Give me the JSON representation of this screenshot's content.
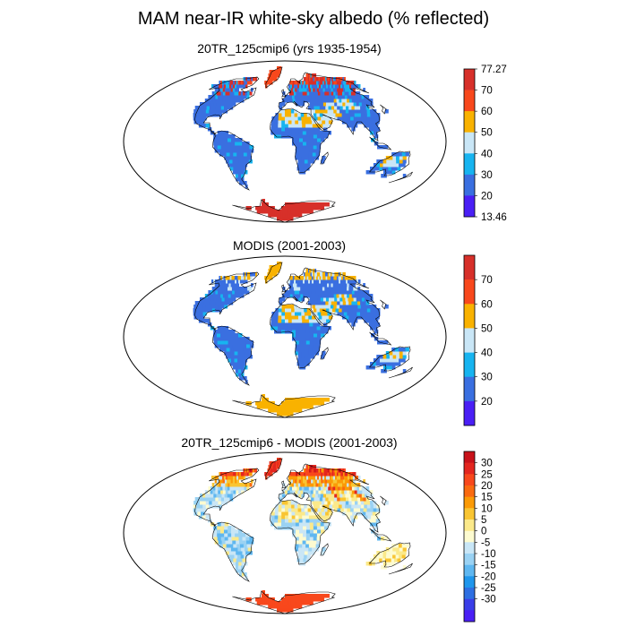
{
  "title": "MAM near-IR white-sky albedo (% reflected)",
  "panels": [
    {
      "title": "20TR_125cmip6 (yrs 1935-1954)",
      "colorbar": {
        "labels": [
          "77.27",
          "70",
          "60",
          "50",
          "40",
          "30",
          "20",
          "13.46"
        ],
        "colors": [
          "#d7302a",
          "#f8481c",
          "#f9b200",
          "#c9e6f6",
          "#17b4f0",
          "#3a6fe0",
          "#4a1ff5"
        ]
      }
    },
    {
      "title": "MODIS (2001-2003)",
      "colorbar": {
        "labels": [
          "70",
          "60",
          "50",
          "40",
          "30",
          "20"
        ],
        "colors": [
          "#d7302a",
          "#f8481c",
          "#f9b200",
          "#c9e6f6",
          "#17b4f0",
          "#3a6fe0",
          "#4a1ff5"
        ]
      }
    },
    {
      "title": "20TR_125cmip6 - MODIS (2001-2003)",
      "colorbar": {
        "labels": [
          "30",
          "25",
          "20",
          "15",
          "10",
          "5",
          "0",
          "-5",
          "-10",
          "-15",
          "-20",
          "-25",
          "-30"
        ],
        "colors": [
          "#c8121a",
          "#e3261f",
          "#f8481c",
          "#fa6a10",
          "#fb9a06",
          "#f9c532",
          "#fbe98a",
          "#fdfbd0",
          "#c9e6f6",
          "#9ad2f3",
          "#5fb7f0",
          "#1f96ec",
          "#2e6fe2",
          "#3a3ee8",
          "#4a1ff5"
        ]
      }
    }
  ]
}
